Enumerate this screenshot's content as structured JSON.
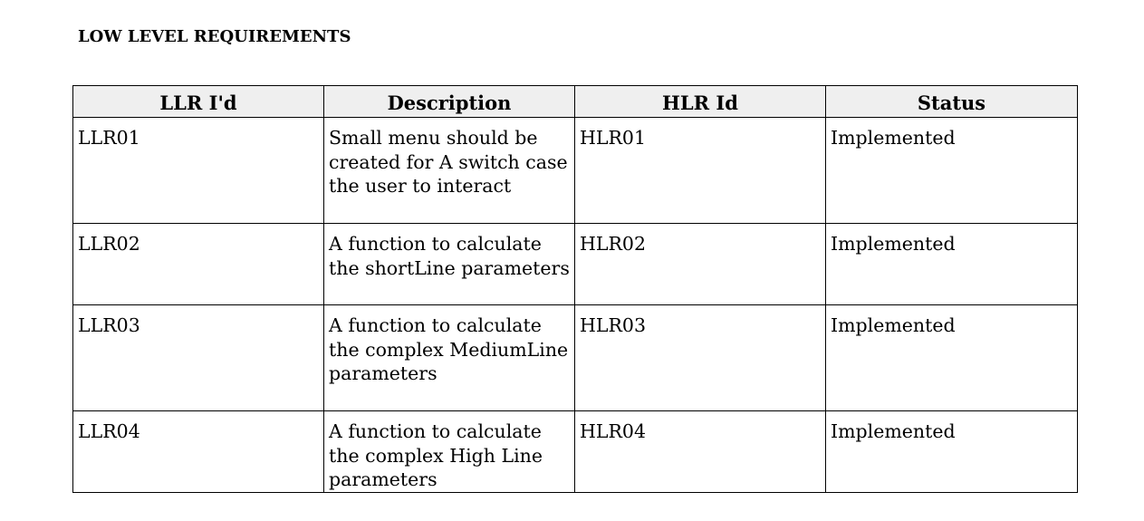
{
  "document": {
    "section_title": "LOW LEVEL REQUIREMENTS"
  },
  "table": {
    "headers": [
      "LLR I'd",
      "Description",
      "HLR Id",
      "Status"
    ],
    "rows": [
      {
        "llr_id": "LLR01",
        "description": "Small menu should be created for A switch case the user to interact",
        "hlr_id": "HLR01",
        "status": "Implemented"
      },
      {
        "llr_id": "LLR02",
        "description": "A function to calculate the shortLine parameters",
        "hlr_id": "HLR02",
        "status": "Implemented"
      },
      {
        "llr_id": "LLR03",
        "description": "A function to calculate the complex MediumLine parameters",
        "hlr_id": "HLR03",
        "status": "Implemented"
      },
      {
        "llr_id": "LLR04",
        "description": "A function to calculate the complex High Line parameters",
        "hlr_id": "HLR04",
        "status": "Implemented"
      }
    ]
  }
}
